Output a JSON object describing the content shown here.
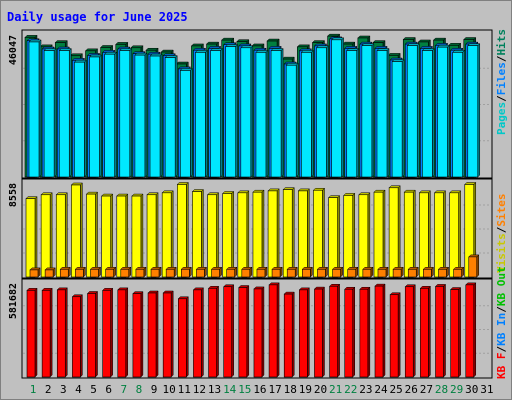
{
  "chart_data": {
    "type": "bar",
    "title": "Daily usage for June 2025",
    "categories": [
      "1",
      "2",
      "3",
      "4",
      "5",
      "6",
      "7",
      "8",
      "9",
      "10",
      "11",
      "12",
      "13",
      "14",
      "15",
      "16",
      "17",
      "18",
      "19",
      "20",
      "21",
      "22",
      "23",
      "24",
      "25",
      "26",
      "27",
      "28",
      "29",
      "30",
      "31"
    ],
    "weekend_days": [
      "1",
      "7",
      "8",
      "14",
      "15",
      "21",
      "22",
      "28",
      "29"
    ],
    "panels": [
      {
        "id": "pfh",
        "max_label": "46047",
        "ymax": 46047,
        "legend": [
          {
            "text": "Pages",
            "color": "#00c8c8"
          },
          {
            "text": "/",
            "color": "#000000"
          },
          {
            "text": "Files",
            "color": "#0080ff"
          },
          {
            "text": "/",
            "color": "#000000"
          },
          {
            "text": "Hits",
            "color": "#00805c"
          }
        ],
        "series": [
          {
            "name": "Hits",
            "color": "#008040",
            "values": [
              45600,
              42500,
              43900,
              39600,
              41200,
              42300,
              43300,
              42200,
              41400,
              40800,
              36900,
              42800,
              43400,
              44700,
              44200,
              42800,
              44400,
              38500,
              42500,
              43900,
              46000,
              43400,
              45400,
              43900,
              39700,
              44900,
              44100,
              44700,
              43000,
              44900,
              null
            ]
          },
          {
            "name": "Files",
            "color": "#0080ff",
            "values": [
              44500,
              41800,
              41800,
              38100,
              39700,
              40700,
              41800,
              40300,
              40100,
              39600,
              35300,
              41400,
              42000,
              43200,
              42800,
              41400,
              42000,
              36900,
              41200,
              42800,
              45100,
              42000,
              43400,
              42000,
              38200,
              43400,
              42000,
              43000,
              41400,
              43400,
              null
            ]
          },
          {
            "name": "Pages",
            "color": "#00e8ff",
            "values": [
              44100,
              41300,
              41300,
              37500,
              39200,
              40100,
              41300,
              39800,
              39500,
              39000,
              34800,
              40700,
              41300,
              42600,
              42200,
              40700,
              41300,
              36500,
              40700,
              42200,
              44800,
              41300,
              42900,
              41300,
              37700,
              42900,
              41300,
              42400,
              40700,
              42900,
              null
            ]
          }
        ]
      },
      {
        "id": "vs",
        "max_label": "8558",
        "ymax": 8558,
        "legend": [
          {
            "text": "Visits",
            "color": "#c8c800"
          },
          {
            "text": "/",
            "color": "#000000"
          },
          {
            "text": "Sites",
            "color": "#ff8000"
          }
        ],
        "series": [
          {
            "name": "Visits",
            "color": "#ffff00",
            "values": [
              7290,
              7650,
              7650,
              8560,
              7710,
              7530,
              7530,
              7530,
              7650,
              7830,
              8610,
              7950,
              7650,
              7770,
              7830,
              7890,
              8010,
              8130,
              8010,
              8070,
              7380,
              7590,
              7650,
              7890,
              8300,
              7890,
              7830,
              7830,
              7830,
              8610,
              null
            ]
          },
          {
            "name": "Sites",
            "color": "#ff8000",
            "values": [
              660,
              660,
              720,
              720,
              720,
              720,
              720,
              720,
              720,
              720,
              720,
              720,
              720,
              720,
              720,
              720,
              720,
              720,
              720,
              720,
              720,
              720,
              720,
              720,
              720,
              720,
              720,
              720,
              720,
              1870,
              null
            ]
          }
        ]
      },
      {
        "id": "kb",
        "max_label": "581682",
        "ymax": 581682,
        "legend": [
          {
            "text": "KB F",
            "color": "#ff0000"
          },
          {
            "text": "/",
            "color": "#000000"
          },
          {
            "text": "KB In",
            "color": "#0080ff"
          },
          {
            "text": "/",
            "color": "#000000"
          },
          {
            "text": "KB Out",
            "color": "#00c000"
          }
        ],
        "series": [
          {
            "name": "KB F",
            "color": "#ff0000",
            "values": [
              554000,
              554000,
              557000,
              513000,
              534000,
              554000,
              557000,
              533000,
              537000,
              537000,
              500000,
              557000,
              567000,
              577000,
              572000,
              563000,
              589000,
              530000,
              557000,
              562000,
              580000,
              561000,
              561000,
              581000,
              526000,
              577000,
              567000,
              579000,
              559000,
              589000,
              null
            ]
          }
        ]
      }
    ]
  }
}
